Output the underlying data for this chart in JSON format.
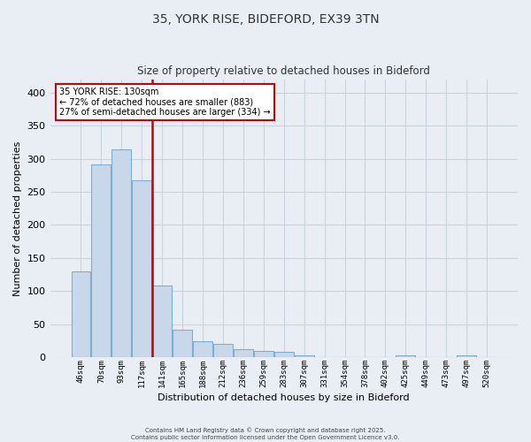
{
  "title_line1": "35, YORK RISE, BIDEFORD, EX39 3TN",
  "title_line2": "Size of property relative to detached houses in Bideford",
  "xlabel": "Distribution of detached houses by size in Bideford",
  "ylabel": "Number of detached properties",
  "bar_labels": [
    "46sqm",
    "70sqm",
    "93sqm",
    "117sqm",
    "141sqm",
    "165sqm",
    "188sqm",
    "212sqm",
    "236sqm",
    "259sqm",
    "283sqm",
    "307sqm",
    "331sqm",
    "354sqm",
    "378sqm",
    "402sqm",
    "425sqm",
    "449sqm",
    "473sqm",
    "497sqm",
    "520sqm"
  ],
  "bar_values": [
    130,
    292,
    314,
    268,
    109,
    42,
    25,
    20,
    12,
    10,
    8,
    3,
    0,
    0,
    0,
    0,
    3,
    0,
    0,
    3,
    0
  ],
  "bar_color": "#c8d8ea",
  "bar_edge_color": "#7baed4",
  "vline_color": "#cc0000",
  "annotation_text": "35 YORK RISE: 130sqm\n← 72% of detached houses are smaller (883)\n27% of semi-detached houses are larger (334) →",
  "annotation_box_color": "#ffffff",
  "annotation_box_edge": "#cc0000",
  "ylim": [
    0,
    420
  ],
  "yticks": [
    0,
    50,
    100,
    150,
    200,
    250,
    300,
    350,
    400
  ],
  "bg_color": "#e8eef4",
  "grid_color": "#c8d4e0",
  "footer_line1": "Contains HM Land Registry data © Crown copyright and database right 2025.",
  "footer_line2": "Contains public sector information licensed under the Open Government Licence v3.0."
}
